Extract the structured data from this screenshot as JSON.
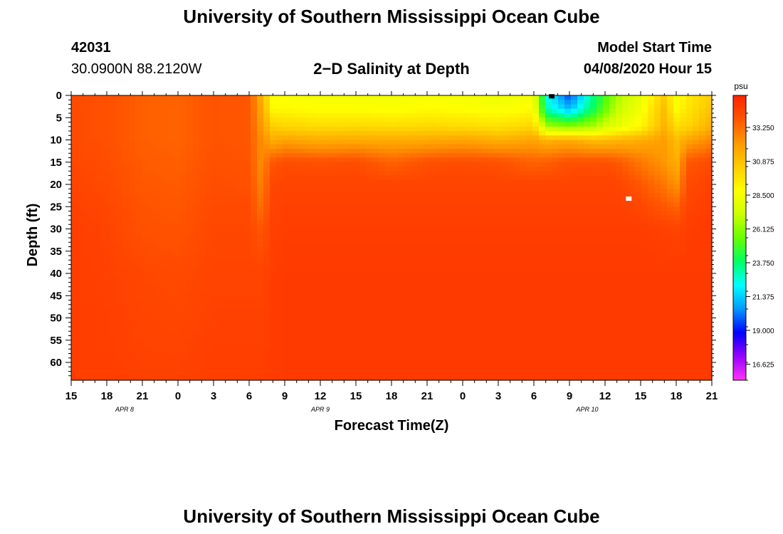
{
  "header": {
    "title": "University of Southern Mississippi Ocean Cube",
    "station_id": "42031",
    "station_coords": "30.0900N 88.2120W",
    "plot_title": "2−D Salinity at Depth",
    "model_start_label": "Model Start Time",
    "model_start_value": "04/08/2020 Hour 15"
  },
  "footer": {
    "title": "University of Southern Mississippi Ocean Cube"
  },
  "chart_data": {
    "type": "heatmap",
    "title": "2−D Salinity at Depth",
    "xlabel": "Forecast Time(Z)",
    "ylabel": "Depth (ft)",
    "x_ticks": [
      "15",
      "18",
      "21",
      "0",
      "3",
      "6",
      "9",
      "12",
      "15",
      "18",
      "21",
      "0",
      "3",
      "6",
      "9",
      "12",
      "15",
      "18",
      "21"
    ],
    "date_labels": [
      {
        "text": "APR 8",
        "tick_index": 1.5
      },
      {
        "text": "APR 9",
        "tick_index": 7
      },
      {
        "text": "APR 10",
        "tick_index": 14.5
      }
    ],
    "y_ticks": [
      0,
      5,
      10,
      15,
      20,
      25,
      30,
      35,
      40,
      45,
      50,
      55,
      60
    ],
    "ylim": [
      0,
      64
    ],
    "x_range_hours": [
      0,
      54
    ],
    "colorbar": {
      "unit": "psu",
      "range": [
        15.5,
        35.5
      ],
      "tick_values": [
        33.25,
        30.875,
        28.5,
        26.125,
        23.75,
        21.375,
        19.0,
        16.625
      ],
      "tick_labels": [
        "33.250",
        "30.875",
        "28.500",
        "26.125",
        "23.750",
        "21.375",
        "19.000",
        "16.625"
      ]
    },
    "time_columns_hours": [
      0,
      3,
      6,
      9,
      12,
      15,
      16,
      17,
      18,
      21,
      24,
      27,
      30,
      33,
      36,
      39,
      40,
      42,
      44,
      45,
      46,
      48,
      50,
      51,
      52,
      54
    ],
    "depth_rows_ft": [
      0,
      3,
      7,
      10,
      15,
      20,
      25,
      30,
      40,
      64
    ],
    "salinity_psu": [
      [
        34.2,
        34.0,
        33.6,
        33.5,
        33.9,
        33.8,
        31.5,
        28.7,
        28.6,
        28.5,
        28.5,
        28.4,
        28.6,
        28.5,
        28.3,
        28.5,
        22.5,
        19.5,
        23.5,
        25.0,
        26.5,
        28.0,
        30.5,
        28.5,
        29.5,
        30.5
      ],
      [
        34.2,
        34.0,
        33.6,
        33.5,
        33.9,
        33.8,
        31.8,
        29.0,
        29.0,
        28.8,
        28.8,
        28.7,
        28.9,
        28.8,
        28.6,
        28.9,
        23.0,
        21.0,
        24.0,
        25.5,
        27.0,
        28.5,
        31.0,
        28.8,
        29.7,
        30.8
      ],
      [
        34.2,
        34.0,
        33.6,
        33.5,
        33.9,
        33.8,
        32.2,
        30.5,
        30.2,
        30.0,
        30.1,
        30.0,
        30.1,
        30.0,
        29.8,
        30.2,
        26.5,
        26.0,
        26.5,
        27.5,
        28.0,
        29.0,
        31.3,
        30.0,
        30.2,
        31.5
      ],
      [
        34.2,
        34.0,
        33.6,
        33.5,
        33.9,
        33.8,
        32.5,
        31.5,
        31.8,
        31.5,
        31.6,
        31.5,
        31.6,
        31.8,
        31.4,
        31.8,
        31.3,
        31.5,
        31.0,
        31.0,
        31.2,
        31.5,
        32.0,
        31.0,
        31.8,
        32.6
      ],
      [
        34.3,
        34.1,
        33.7,
        33.6,
        34.0,
        33.9,
        32.5,
        33.8,
        34.1,
        34.0,
        34.1,
        33.5,
        34.0,
        34.1,
        34.0,
        33.5,
        33.6,
        34.0,
        34.0,
        34.0,
        33.8,
        33.0,
        32.2,
        31.5,
        33.8,
        34.2
      ],
      [
        34.4,
        34.2,
        33.8,
        33.7,
        34.1,
        34.0,
        32.8,
        34.3,
        34.4,
        34.4,
        34.4,
        34.4,
        34.4,
        34.4,
        34.4,
        34.4,
        34.4,
        34.4,
        34.4,
        34.4,
        34.4,
        33.8,
        33.0,
        32.3,
        34.2,
        34.5
      ],
      [
        34.5,
        34.3,
        33.9,
        33.8,
        34.2,
        34.2,
        33.2,
        34.4,
        34.5,
        34.5,
        34.5,
        34.5,
        34.5,
        34.5,
        34.5,
        34.5,
        34.5,
        34.5,
        34.5,
        34.5,
        34.5,
        34.3,
        33.8,
        33.5,
        34.4,
        34.6
      ],
      [
        34.6,
        34.4,
        34.0,
        33.9,
        34.3,
        34.3,
        33.8,
        34.5,
        34.6,
        34.6,
        34.6,
        34.6,
        34.6,
        34.6,
        34.6,
        34.6,
        34.6,
        34.6,
        34.6,
        34.6,
        34.6,
        34.6,
        34.5,
        34.4,
        34.6,
        34.7
      ],
      [
        34.6,
        34.5,
        34.3,
        34.2,
        34.4,
        34.4,
        34.4,
        34.6,
        34.7,
        34.7,
        34.7,
        34.7,
        34.7,
        34.7,
        34.7,
        34.7,
        34.7,
        34.7,
        34.7,
        34.7,
        34.7,
        34.7,
        34.7,
        34.7,
        34.7,
        34.7
      ],
      [
        34.6,
        34.6,
        34.5,
        34.5,
        34.6,
        34.6,
        34.6,
        34.7,
        34.7,
        34.7,
        34.7,
        34.7,
        34.7,
        34.7,
        34.7,
        34.7,
        34.7,
        34.7,
        34.7,
        34.7,
        34.7,
        34.7,
        34.7,
        34.7,
        34.7,
        34.7
      ]
    ],
    "markers": [
      {
        "time_hours": 40.5,
        "depth_ft": 0.2,
        "color": "#000000"
      },
      {
        "time_hours": 47.0,
        "depth_ft": 23.2,
        "color": "#ffffff"
      }
    ],
    "colors": {
      "scale": [
        "#ff33ff",
        "#9900ff",
        "#0000ff",
        "#0099ff",
        "#00ffff",
        "#00ff66",
        "#66ff00",
        "#ccff00",
        "#ffff00",
        "#ffcc00",
        "#ff9900",
        "#ff5500",
        "#ff2200"
      ]
    }
  }
}
